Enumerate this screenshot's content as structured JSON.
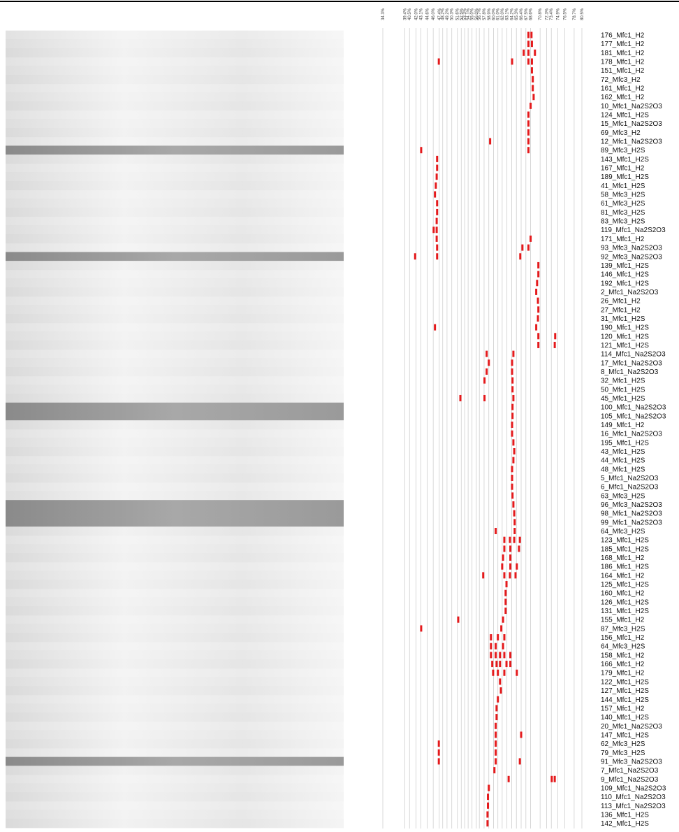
{
  "chart_data": {
    "type": "dgge",
    "xlim": [
      34.3,
      80.5
    ],
    "color": "#e41a1c",
    "xticks": [
      {
        "value": 34.3,
        "label": "34.3%"
      },
      {
        "value": 39.4,
        "label": "39.4%"
      },
      {
        "value": 40.5,
        "label": "40.5%"
      },
      {
        "value": 42.0,
        "label": "42.0%"
      },
      {
        "value": 43.1,
        "label": "43.1%"
      },
      {
        "value": 44.6,
        "label": "44.6%"
      },
      {
        "value": 46.0,
        "label": "46.0%"
      },
      {
        "value": 47.4,
        "label": "47.4%"
      },
      {
        "value": 48.2,
        "label": "48.2%"
      },
      {
        "value": 49.2,
        "label": "49.2%"
      },
      {
        "value": 50.3,
        "label": "50.3%"
      },
      {
        "value": 51.6,
        "label": "51.6%"
      },
      {
        "value": 52.5,
        "label": "52.5%"
      },
      {
        "value": 53.3,
        "label": "53.3%"
      },
      {
        "value": 54.1,
        "label": "54.1%"
      },
      {
        "value": 55.0,
        "label": "55.0%"
      },
      {
        "value": 56.0,
        "label": "56.0%"
      },
      {
        "value": 56.7,
        "label": "56.7%"
      },
      {
        "value": 57.8,
        "label": "57.8%"
      },
      {
        "value": 58.9,
        "label": "58.9%"
      },
      {
        "value": 60.0,
        "label": "60.0%"
      },
      {
        "value": 61.0,
        "label": "61.0%"
      },
      {
        "value": 62.0,
        "label": "62.0%"
      },
      {
        "value": 63.1,
        "label": "63.1%"
      },
      {
        "value": 64.2,
        "label": "64.2%"
      },
      {
        "value": 65.3,
        "label": "65.3%"
      },
      {
        "value": 66.4,
        "label": "66.4%"
      },
      {
        "value": 67.5,
        "label": "67.5%"
      },
      {
        "value": 68.6,
        "label": "68.6%"
      },
      {
        "value": 70.8,
        "label": "70.8%"
      },
      {
        "value": 72.3,
        "label": "72.3%"
      },
      {
        "value": 73.4,
        "label": "73.4%"
      },
      {
        "value": 74.9,
        "label": "74.9%"
      },
      {
        "value": 76.5,
        "label": "76.5%"
      },
      {
        "value": 78.7,
        "label": "78.7%"
      },
      {
        "value": 80.5,
        "label": "80.5%"
      }
    ],
    "lanes": [
      {
        "name": "176_Mfc1_H2",
        "values": [
          68.1,
          68.8
        ]
      },
      {
        "name": "177_Mfc1_H2",
        "values": [
          68.1,
          68.9
        ]
      },
      {
        "name": "181_Mfc1_H2",
        "values": [
          67.0,
          68.1,
          69.6
        ]
      },
      {
        "name": "178_Mfc1_H2",
        "values": [
          47.3,
          64.3,
          68.1,
          68.9
        ]
      },
      {
        "name": "151_Mfc1_H2",
        "values": [
          68.9
        ]
      },
      {
        "name": "72_Mfc3_H2",
        "values": [
          69.1
        ]
      },
      {
        "name": "161_Mfc1_H2",
        "values": [
          69.1
        ]
      },
      {
        "name": "162_Mfc1_H2",
        "values": [
          69.3
        ]
      },
      {
        "name": "10_Mfc1_Na2S2O3",
        "values": [
          68.6
        ]
      },
      {
        "name": "124_Mfc1_H2S",
        "values": [
          68.1
        ]
      },
      {
        "name": "15_Mfc1_Na2S2O3",
        "values": [
          68.1
        ]
      },
      {
        "name": "69_Mfc3_H2",
        "values": [
          68.1
        ]
      },
      {
        "name": "12_Mfc1_Na2S2O3",
        "values": [
          59.2,
          68.1
        ]
      },
      {
        "name": "89_Mfc3_H2S",
        "values": [
          43.2,
          68.1
        ]
      },
      {
        "name": "143_Mfc1_H2S",
        "values": [
          46.9
        ]
      },
      {
        "name": "167_Mfc1_H2",
        "values": [
          46.9
        ]
      },
      {
        "name": "189_Mfc1_H2S",
        "values": [
          46.8
        ]
      },
      {
        "name": "41_Mfc1_H2S",
        "values": [
          46.6
        ]
      },
      {
        "name": "58_Mfc3_H2S",
        "values": [
          46.4
        ]
      },
      {
        "name": "61_Mfc3_H2S",
        "values": [
          46.9
        ]
      },
      {
        "name": "81_Mfc3_H2S",
        "values": [
          46.9
        ]
      },
      {
        "name": "83_Mfc3_H2S",
        "values": [
          46.8
        ]
      },
      {
        "name": "119_Mfc1_Na2S2O3",
        "values": [
          46.1,
          46.8
        ]
      },
      {
        "name": "171_Mfc1_H2",
        "values": [
          46.8,
          68.6
        ]
      },
      {
        "name": "93_Mfc3_Na2S2O3",
        "values": [
          46.9,
          66.7,
          68.1
        ]
      },
      {
        "name": "92_Mfc3_Na2S2O3",
        "values": [
          41.8,
          46.9,
          66.2
        ]
      },
      {
        "name": "139_Mfc1_H2S",
        "values": [
          70.4
        ]
      },
      {
        "name": "146_Mfc1_H2S",
        "values": [
          70.4
        ]
      },
      {
        "name": "192_Mfc1_H2S",
        "values": [
          70.1
        ]
      },
      {
        "name": "2_Mfc1_Na2S2O3",
        "values": [
          69.9
        ]
      },
      {
        "name": "26_Mfc1_H2",
        "values": [
          70.3
        ]
      },
      {
        "name": "27_Mfc1_H2",
        "values": [
          70.4
        ]
      },
      {
        "name": "31_Mfc1_H2S",
        "values": [
          70.3
        ]
      },
      {
        "name": "190_Mfc1_H2S",
        "values": [
          46.4,
          69.9
        ]
      },
      {
        "name": "120_Mfc1_H2S",
        "values": [
          70.4,
          74.3
        ]
      },
      {
        "name": "121_Mfc1_H2S",
        "values": [
          70.4,
          74.2
        ]
      },
      {
        "name": "114_Mfc1_Na2S2O3",
        "values": [
          58.4,
          64.6
        ]
      },
      {
        "name": "17_Mfc1_Na2S2O3",
        "values": [
          58.9,
          64.3
        ]
      },
      {
        "name": "8_Mfc1_Na2S2O3",
        "values": [
          58.4,
          64.3
        ]
      },
      {
        "name": "32_Mfc1_H2S",
        "values": [
          57.9,
          64.4
        ]
      },
      {
        "name": "50_Mfc1_H2S",
        "values": [
          64.4
        ]
      },
      {
        "name": "45_Mfc1_H2S",
        "values": [
          52.3,
          57.9,
          64.6
        ]
      },
      {
        "name": "100_Mfc1_Na2S2O3",
        "values": [
          64.4
        ]
      },
      {
        "name": "105_Mfc1_Na2S2O3",
        "values": [
          64.4
        ]
      },
      {
        "name": "149_Mfc1_H2",
        "values": [
          64.3
        ]
      },
      {
        "name": "16_Mfc1_Na2S2O3",
        "values": [
          64.3
        ]
      },
      {
        "name": "195_Mfc1_H2S",
        "values": [
          64.6
        ]
      },
      {
        "name": "43_Mfc1_H2S",
        "values": [
          64.8
        ]
      },
      {
        "name": "44_Mfc1_H2S",
        "values": [
          64.6
        ]
      },
      {
        "name": "48_Mfc1_H2S",
        "values": [
          64.3
        ]
      },
      {
        "name": "5_Mfc1_Na2S2O3",
        "values": [
          64.3
        ]
      },
      {
        "name": "6_Mfc1_Na2S2O3",
        "values": [
          64.3
        ]
      },
      {
        "name": "63_Mfc3_H2S",
        "values": [
          64.4
        ]
      },
      {
        "name": "96_Mfc3_Na2S2O3",
        "values": [
          64.6
        ]
      },
      {
        "name": "98_Mfc1_Na2S2O3",
        "values": [
          64.8
        ]
      },
      {
        "name": "99_Mfc1_Na2S2O3",
        "values": [
          64.9
        ]
      },
      {
        "name": "64_Mfc3_H2S",
        "values": [
          60.5,
          64.9
        ]
      },
      {
        "name": "123_Mfc1_H2S",
        "values": [
          62.5,
          63.8,
          64.8,
          66.1
        ]
      },
      {
        "name": "185_Mfc1_H2S",
        "values": [
          62.5,
          63.9,
          65.9
        ]
      },
      {
        "name": "168_Mfc1_H2",
        "values": [
          62.2,
          63.9
        ]
      },
      {
        "name": "186_Mfc1_H2S",
        "values": [
          62.0,
          63.9,
          65.4
        ]
      },
      {
        "name": "164_Mfc1_H2",
        "values": [
          57.6,
          62.5,
          63.8,
          65.1
        ]
      },
      {
        "name": "125_Mfc1_H2S",
        "values": [
          63.0
        ]
      },
      {
        "name": "160_Mfc1_H2",
        "values": [
          62.8
        ]
      },
      {
        "name": "126_Mfc1_H2S",
        "values": [
          62.8
        ]
      },
      {
        "name": "131_Mfc1_H2S",
        "values": [
          62.8
        ]
      },
      {
        "name": "155_Mfc1_H2",
        "values": [
          51.8,
          62.2
        ]
      },
      {
        "name": "87_Mfc3_H2S",
        "values": [
          43.2,
          61.8
        ]
      },
      {
        "name": "156_Mfc1_H2",
        "values": [
          59.4,
          61.0,
          62.5
        ]
      },
      {
        "name": "64_Mfc3_H2S",
        "values": [
          59.4,
          60.5,
          62.2
        ]
      },
      {
        "name": "158_Mfc1_H2",
        "values": [
          59.4,
          60.5,
          61.5,
          62.5,
          63.9
        ]
      },
      {
        "name": "166_Mfc1_H2",
        "values": [
          59.7,
          60.7,
          61.5,
          63.0,
          63.9
        ]
      },
      {
        "name": "179_Mfc1_H2",
        "values": [
          59.9,
          61.0,
          62.5,
          65.4
        ]
      },
      {
        "name": "122_Mfc1_H2S",
        "values": [
          61.5
        ]
      },
      {
        "name": "127_Mfc1_H2S",
        "values": [
          61.7
        ]
      },
      {
        "name": "144_Mfc1_H2S",
        "values": [
          61.0
        ]
      },
      {
        "name": "157_Mfc1_H2",
        "values": [
          60.7
        ]
      },
      {
        "name": "140_Mfc1_H2S",
        "values": [
          60.7
        ]
      },
      {
        "name": "20_Mfc1_Na2S2O3",
        "values": [
          60.5
        ]
      },
      {
        "name": "147_Mfc1_H2S",
        "values": [
          60.5,
          66.4
        ]
      },
      {
        "name": "62_Mfc3_H2S",
        "values": [
          47.3,
          60.5
        ]
      },
      {
        "name": "79_Mfc3_H2S",
        "values": [
          47.3,
          60.5
        ]
      },
      {
        "name": "91_Mfc3_Na2S2O3",
        "values": [
          47.3,
          60.5,
          66.1
        ]
      },
      {
        "name": "7_Mfc1_Na2S2O3",
        "values": [
          60.2
        ]
      },
      {
        "name": "9_Mfc1_Na2S2O3",
        "values": [
          63.5,
          73.5,
          74.2
        ]
      },
      {
        "name": "109_Mfc1_Na2S2O3",
        "values": [
          58.9
        ]
      },
      {
        "name": "110_Mfc1_Na2S2O3",
        "values": [
          58.7
        ]
      },
      {
        "name": "113_Mfc1_Na2S2O3",
        "values": [
          58.7
        ]
      },
      {
        "name": "136_Mfc1_H2S",
        "values": [
          58.6
        ]
      },
      {
        "name": "142_Mfc1_H2S",
        "values": [
          58.6
        ]
      }
    ]
  }
}
